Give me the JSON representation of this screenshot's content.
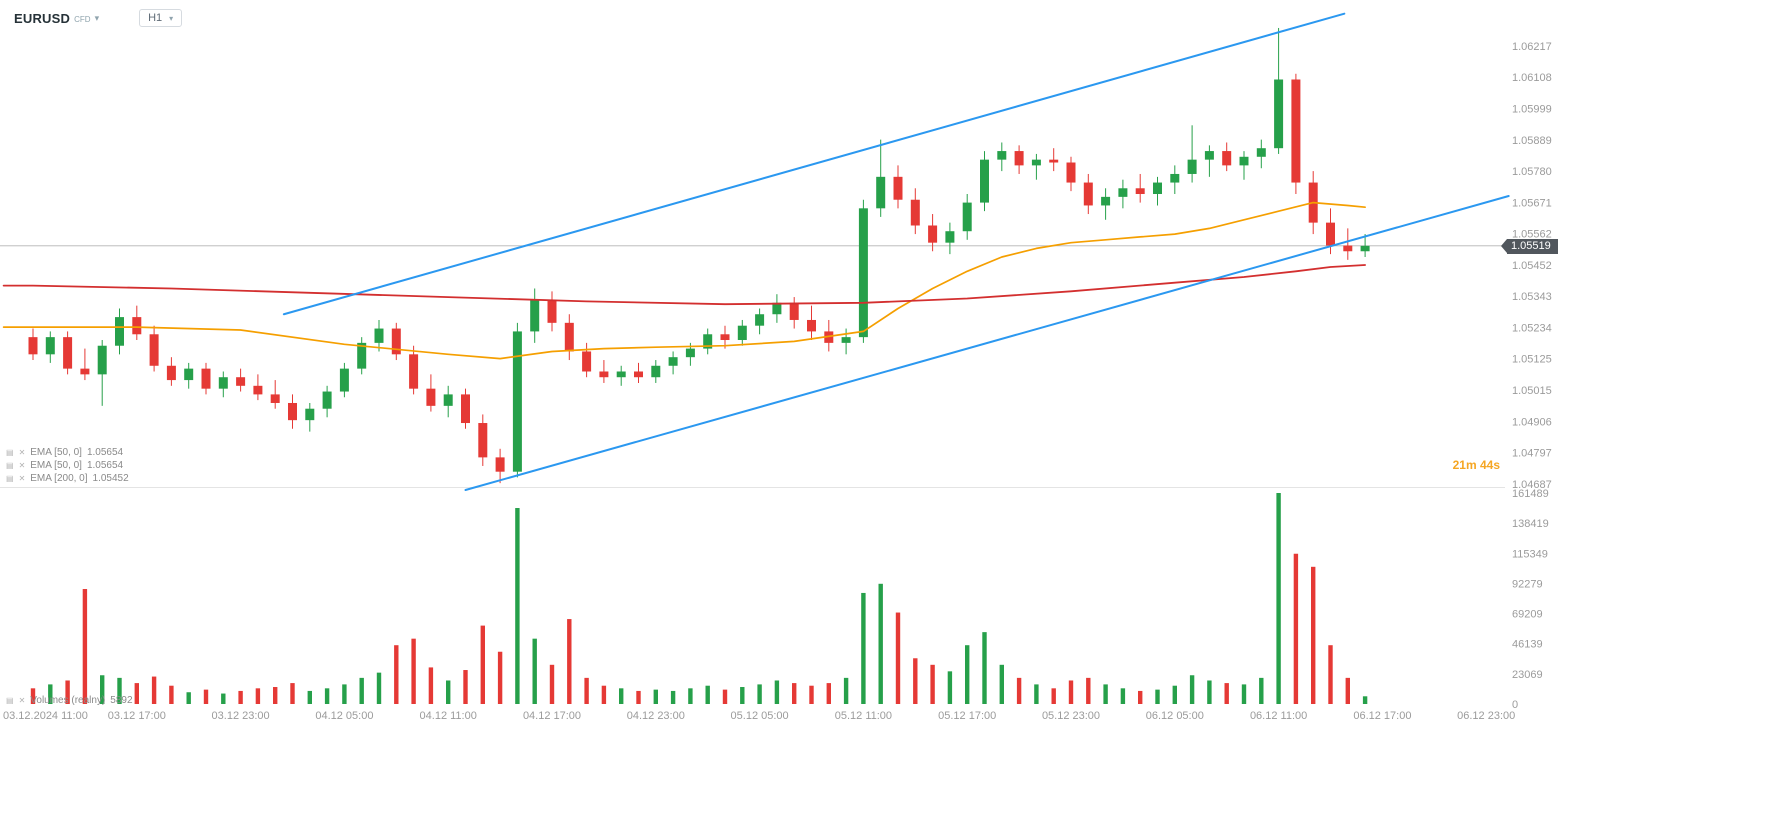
{
  "header": {
    "symbol": "EURUSD",
    "type_label": "CFD",
    "timeframe": "H1"
  },
  "icons": {
    "caret_down": "▾",
    "settings": "▤",
    "close": "✕"
  },
  "indicators": [
    {
      "label": "EMA [50, 0]",
      "value": "1.05654"
    },
    {
      "label": "EMA [50, 0]",
      "value": "1.05654"
    },
    {
      "label": "EMA [200, 0]",
      "value": "1.05452"
    }
  ],
  "volume_legend": {
    "label": "Volumes  (realny)",
    "value": "5892"
  },
  "countdown": {
    "text": "21m 44s"
  },
  "current_price_label": "1.05519",
  "ui_colors": {
    "badge_bg": "#51575d",
    "countdown_orange": "#f5a623"
  },
  "chart_data": {
    "type": "candlestick",
    "symbol": "EURUSD",
    "timeframe": "H1",
    "start_time": "03.12.2024 11:00",
    "interval_hours": 1,
    "current_price": 1.05519,
    "colors": {
      "up": "#26a04a",
      "down": "#e53935",
      "axis_text": "#9b9b9b",
      "trendline": "#2b98f0",
      "ema50": "#f59f00",
      "ema200": "#d32f2f",
      "price_line": "#b5b5b5",
      "divider": "#e4e4e4"
    },
    "price_axis": {
      "min": 1.04687,
      "max": 1.06217,
      "step": 0.00109,
      "labels": [
        "1.06217",
        "1.06108",
        "1.05999",
        "1.05889",
        "1.05780",
        "1.05671",
        "1.05562",
        "1.05452",
        "1.05343",
        "1.05234",
        "1.05125",
        "1.05015",
        "1.04906",
        "1.04797",
        "1.04687"
      ]
    },
    "volume_axis": {
      "max": 161489,
      "labels": [
        "161489",
        "138419",
        "115349",
        "92279",
        "69209",
        "46139",
        "23069",
        "0"
      ]
    },
    "time_axis": {
      "candles_per_tick": 6,
      "labels": [
        "03.12.2024 11:00",
        "03.12 17:00",
        "03.12 23:00",
        "04.12 05:00",
        "04.12 11:00",
        "04.12 17:00",
        "04.12 23:00",
        "05.12 05:00",
        "05.12 11:00",
        "05.12 17:00",
        "05.12 23:00",
        "06.12 05:00",
        "06.12 11:00",
        "06.12 17:00",
        "06.12 23:00"
      ]
    },
    "ohlcv": [
      [
        1.052,
        1.0523,
        1.0512,
        1.0514,
        12000
      ],
      [
        1.0514,
        1.0522,
        1.0511,
        1.052,
        15000
      ],
      [
        1.052,
        1.0522,
        1.0507,
        1.0509,
        18000
      ],
      [
        1.0509,
        1.0516,
        1.0505,
        1.0507,
        88000
      ],
      [
        1.0507,
        1.0519,
        1.0496,
        1.0517,
        22000
      ],
      [
        1.0517,
        1.053,
        1.0514,
        1.0527,
        20000
      ],
      [
        1.0527,
        1.0531,
        1.0519,
        1.0521,
        16000
      ],
      [
        1.0521,
        1.0524,
        1.0508,
        1.051,
        21000
      ],
      [
        1.051,
        1.0513,
        1.0503,
        1.0505,
        14000
      ],
      [
        1.0505,
        1.0511,
        1.0502,
        1.0509,
        9000
      ],
      [
        1.0509,
        1.0511,
        1.05,
        1.0502,
        11000
      ],
      [
        1.0502,
        1.0508,
        1.0499,
        1.0506,
        8000
      ],
      [
        1.0506,
        1.0509,
        1.0501,
        1.0503,
        10000
      ],
      [
        1.0503,
        1.0507,
        1.0498,
        1.05,
        12000
      ],
      [
        1.05,
        1.0505,
        1.0495,
        1.0497,
        13000
      ],
      [
        1.0497,
        1.05,
        1.0488,
        1.0491,
        16000
      ],
      [
        1.0491,
        1.0497,
        1.0487,
        1.0495,
        10000
      ],
      [
        1.0495,
        1.0503,
        1.0492,
        1.0501,
        12000
      ],
      [
        1.0501,
        1.0511,
        1.0499,
        1.0509,
        15000
      ],
      [
        1.0509,
        1.052,
        1.0507,
        1.0518,
        20000
      ],
      [
        1.0518,
        1.0526,
        1.0515,
        1.0523,
        24000
      ],
      [
        1.0523,
        1.0525,
        1.0512,
        1.0514,
        45000
      ],
      [
        1.0514,
        1.0517,
        1.05,
        1.0502,
        50000
      ],
      [
        1.0502,
        1.0507,
        1.0494,
        1.0496,
        28000
      ],
      [
        1.0496,
        1.0503,
        1.0492,
        1.05,
        18000
      ],
      [
        1.05,
        1.0502,
        1.0488,
        1.049,
        26000
      ],
      [
        1.049,
        1.0493,
        1.0475,
        1.0478,
        60000
      ],
      [
        1.0478,
        1.0481,
        1.0469,
        1.0473,
        40000
      ],
      [
        1.0473,
        1.0525,
        1.0471,
        1.0522,
        150000
      ],
      [
        1.0522,
        1.0537,
        1.0518,
        1.0533,
        50000
      ],
      [
        1.0533,
        1.0536,
        1.0522,
        1.0525,
        30000
      ],
      [
        1.0525,
        1.0528,
        1.0512,
        1.0515,
        65000
      ],
      [
        1.0515,
        1.0518,
        1.0506,
        1.0508,
        20000
      ],
      [
        1.0508,
        1.0512,
        1.0504,
        1.0506,
        14000
      ],
      [
        1.0506,
        1.051,
        1.0503,
        1.0508,
        12000
      ],
      [
        1.0508,
        1.0511,
        1.0504,
        1.0506,
        10000
      ],
      [
        1.0506,
        1.0512,
        1.0504,
        1.051,
        11000
      ],
      [
        1.051,
        1.0515,
        1.0507,
        1.0513,
        10000
      ],
      [
        1.0513,
        1.0518,
        1.051,
        1.0516,
        12000
      ],
      [
        1.0516,
        1.0523,
        1.0514,
        1.0521,
        14000
      ],
      [
        1.0521,
        1.0524,
        1.0516,
        1.0519,
        11000
      ],
      [
        1.0519,
        1.0526,
        1.0517,
        1.0524,
        13000
      ],
      [
        1.0524,
        1.053,
        1.0521,
        1.0528,
        15000
      ],
      [
        1.0528,
        1.0535,
        1.0525,
        1.0532,
        18000
      ],
      [
        1.0532,
        1.0534,
        1.0523,
        1.0526,
        16000
      ],
      [
        1.0526,
        1.0531,
        1.0519,
        1.0522,
        14000
      ],
      [
        1.0522,
        1.0526,
        1.0515,
        1.0518,
        16000
      ],
      [
        1.0518,
        1.0523,
        1.0514,
        1.052,
        20000
      ],
      [
        1.052,
        1.0568,
        1.0518,
        1.0565,
        85000
      ],
      [
        1.0565,
        1.0589,
        1.0562,
        1.0576,
        92000
      ],
      [
        1.0576,
        1.058,
        1.0565,
        1.0568,
        70000
      ],
      [
        1.0568,
        1.0572,
        1.0556,
        1.0559,
        35000
      ],
      [
        1.0559,
        1.0563,
        1.055,
        1.0553,
        30000
      ],
      [
        1.0553,
        1.056,
        1.0549,
        1.0557,
        25000
      ],
      [
        1.0557,
        1.057,
        1.0554,
        1.0567,
        45000
      ],
      [
        1.0567,
        1.0585,
        1.0564,
        1.0582,
        55000
      ],
      [
        1.0582,
        1.0588,
        1.0578,
        1.0585,
        30000
      ],
      [
        1.0585,
        1.0587,
        1.0577,
        1.058,
        20000
      ],
      [
        1.058,
        1.0584,
        1.0575,
        1.0582,
        15000
      ],
      [
        1.0582,
        1.0586,
        1.0578,
        1.0581,
        12000
      ],
      [
        1.0581,
        1.0583,
        1.0571,
        1.0574,
        18000
      ],
      [
        1.0574,
        1.0577,
        1.0563,
        1.0566,
        20000
      ],
      [
        1.0566,
        1.0572,
        1.0561,
        1.0569,
        15000
      ],
      [
        1.0569,
        1.0575,
        1.0565,
        1.0572,
        12000
      ],
      [
        1.0572,
        1.0577,
        1.0567,
        1.057,
        10000
      ],
      [
        1.057,
        1.0576,
        1.0566,
        1.0574,
        11000
      ],
      [
        1.0574,
        1.058,
        1.057,
        1.0577,
        14000
      ],
      [
        1.0577,
        1.0594,
        1.0574,
        1.0582,
        22000
      ],
      [
        1.0582,
        1.0587,
        1.0576,
        1.0585,
        18000
      ],
      [
        1.0585,
        1.0588,
        1.0578,
        1.058,
        16000
      ],
      [
        1.058,
        1.0585,
        1.0575,
        1.0583,
        15000
      ],
      [
        1.0583,
        1.0589,
        1.0579,
        1.0586,
        20000
      ],
      [
        1.0586,
        1.0628,
        1.0584,
        1.061,
        161489
      ],
      [
        1.061,
        1.0612,
        1.057,
        1.0574,
        115000
      ],
      [
        1.0574,
        1.0578,
        1.0556,
        1.056,
        105000
      ],
      [
        1.056,
        1.0565,
        1.0549,
        1.0552,
        45000
      ],
      [
        1.0552,
        1.0558,
        1.0547,
        1.055,
        20000
      ],
      [
        1.055,
        1.0556,
        1.0548,
        1.05519,
        5892
      ]
    ],
    "overlays": {
      "ema50": {
        "name": "EMA 50",
        "color": "#f59f00",
        "points": [
          [
            -1.7,
            1.05235
          ],
          [
            0,
            1.05235
          ],
          [
            6,
            1.05235
          ],
          [
            12,
            1.05225
          ],
          [
            18,
            1.05175
          ],
          [
            24,
            1.0514
          ],
          [
            27,
            1.05125
          ],
          [
            30,
            1.0515
          ],
          [
            33,
            1.0516
          ],
          [
            36,
            1.05165
          ],
          [
            40,
            1.0517
          ],
          [
            44,
            1.05185
          ],
          [
            48,
            1.0522
          ],
          [
            50,
            1.053
          ],
          [
            52,
            1.0537
          ],
          [
            54,
            1.0543
          ],
          [
            56,
            1.0548
          ],
          [
            58,
            1.0551
          ],
          [
            60,
            1.0553
          ],
          [
            62,
            1.0554
          ],
          [
            64,
            1.0555
          ],
          [
            66,
            1.0556
          ],
          [
            68,
            1.0558
          ],
          [
            70,
            1.0561
          ],
          [
            72,
            1.0564
          ],
          [
            74,
            1.0567
          ],
          [
            76,
            1.0566
          ],
          [
            77,
            1.05654
          ]
        ]
      },
      "ema200": {
        "name": "EMA 200",
        "color": "#d32f2f",
        "points": [
          [
            -1.7,
            1.0538
          ],
          [
            0,
            1.0538
          ],
          [
            8,
            1.0537
          ],
          [
            16,
            1.05355
          ],
          [
            24,
            1.0534
          ],
          [
            32,
            1.05325
          ],
          [
            40,
            1.05315
          ],
          [
            48,
            1.0532
          ],
          [
            54,
            1.05335
          ],
          [
            60,
            1.0536
          ],
          [
            66,
            1.0539
          ],
          [
            70,
            1.0541
          ],
          [
            73,
            1.0543
          ],
          [
            75,
            1.05445
          ],
          [
            77,
            1.05452
          ]
        ]
      },
      "trendlines": [
        {
          "name": "upper-channel",
          "color": "#2b98f0",
          "from": [
            14.5,
            1.0528
          ],
          "to": [
            75.8,
            1.0633
          ]
        },
        {
          "name": "lower-channel",
          "color": "#2b98f0",
          "from": [
            25.0,
            1.04666
          ],
          "to": [
            85.3,
            1.05693
          ]
        }
      ]
    }
  }
}
